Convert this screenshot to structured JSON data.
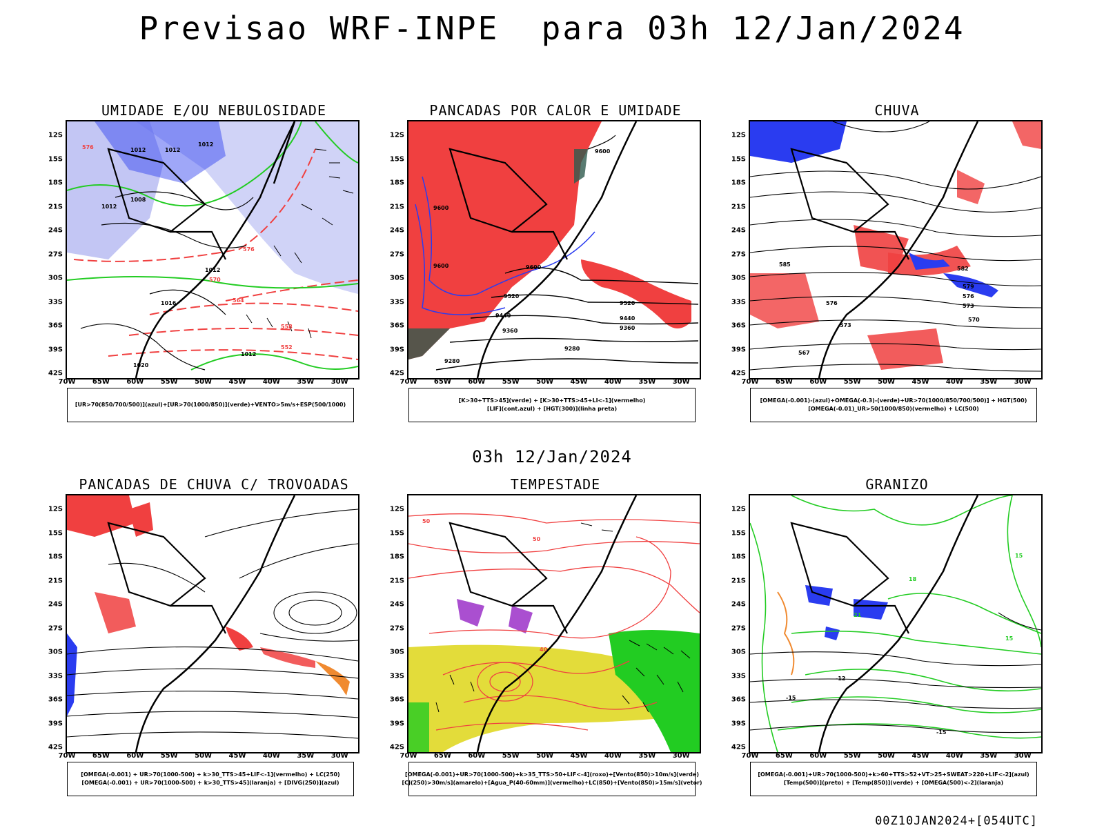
{
  "header": {
    "title": "Previsao WRF-INPE  para 03h 12/Jan/2024",
    "middle_date": "03h 12/Jan/2024",
    "footer_stamp": "00Z10JAN2024+[054UTC]"
  },
  "axes": {
    "latitudes": [
      "12S",
      "15S",
      "18S",
      "21S",
      "24S",
      "27S",
      "30S",
      "33S",
      "36S",
      "39S",
      "42S"
    ],
    "longitudes": [
      "70W",
      "65W",
      "60W",
      "55W",
      "50W",
      "45W",
      "40W",
      "35W",
      "30W"
    ]
  },
  "panels": [
    {
      "title": "UMIDADE E/OU NEBULOSIDADE",
      "legend": [
        "[UR>70(850/700/500)](azul)+[UR>70(1000/850)](verde)+VENTO>5m/s+ESP(500/1000)"
      ],
      "contour_labels": [
        "1012",
        "1012",
        "1012",
        "1012",
        "1008",
        "1012",
        "1016",
        "1020",
        "1012",
        "576",
        "576",
        "570",
        "564",
        "558",
        "552"
      ]
    },
    {
      "title": "PANCADAS POR CALOR E UMIDADE",
      "legend": [
        "[K>30+TTS>45](verde) + [K>30+TTS>45+LI<-1](vermelho)",
        "[LIF](cont.azul) + [HGT(300)](linha preta)"
      ],
      "contour_labels": [
        "9600",
        "9600",
        "9600",
        "9520",
        "9520",
        "9440",
        "9440",
        "9360",
        "9360",
        "9280",
        "9280",
        "9600"
      ]
    },
    {
      "title": "CHUVA",
      "legend": [
        "[OMEGA(-0.001)-(azul)+OMEGA(-0.3)-(verde)+UR>70(1000/850/700/500)] + HGT(500)",
        "[OMEGA(-0.01)_UR>50(1000/850)(vermelho) + LC(500)"
      ],
      "contour_labels": [
        "585",
        "582",
        "579",
        "576",
        "573",
        "570",
        "567",
        "576",
        "573"
      ]
    },
    {
      "title": "PANCADAS DE CHUVA C/ TROVOADAS",
      "legend": [
        "[OMEGA(-0.001) + UR>70(1000-500) + k>30_TTS>45+LIF<-1](vermelho) + LC(250)",
        "[OMEGA(-0.001) + UR>70(1000-500) + k>30_TTS>45](laranja) + [DIVG(250)](azul)"
      ],
      "contour_labels": []
    },
    {
      "title": "TEMPESTADE",
      "legend": [
        "[OMEGA(-0.001)+UR>70(1000-500)+k>35_TTS>50+LIF<-4](roxo)+[Vento(850)>10m/s](verde)",
        "[CJ(250)>30m/s](amarelo)+[Agua_P(40-60mm)](vermelho)+LC(850)+[Vento(850)>15m/s](vetor)"
      ],
      "contour_labels": [
        "50",
        "40",
        "50"
      ]
    },
    {
      "title": "GRANIZO",
      "legend": [
        "[OMEGA(-0.001)+UR>70(1000-500)+k>60+TTS>52+VT>25+SWEAT>220+LIF<-2](azul)",
        "[Temp(500)](preto) + [Temp(850)](verde) + [OMEGA(500)<-2](laranja)"
      ],
      "contour_labels": [
        "-12",
        "-15",
        "-15",
        "15",
        "18",
        "21",
        "15"
      ]
    }
  ],
  "colors": {
    "blue_fill": "#a9aef0",
    "blue_strong": "#2a3cf0",
    "green": "#22cc22",
    "red": "#f04040",
    "dark_teal": "#2f5a4e",
    "yellow": "#e3dc3a",
    "purple": "#9b30c8",
    "orange": "#f08a30"
  }
}
